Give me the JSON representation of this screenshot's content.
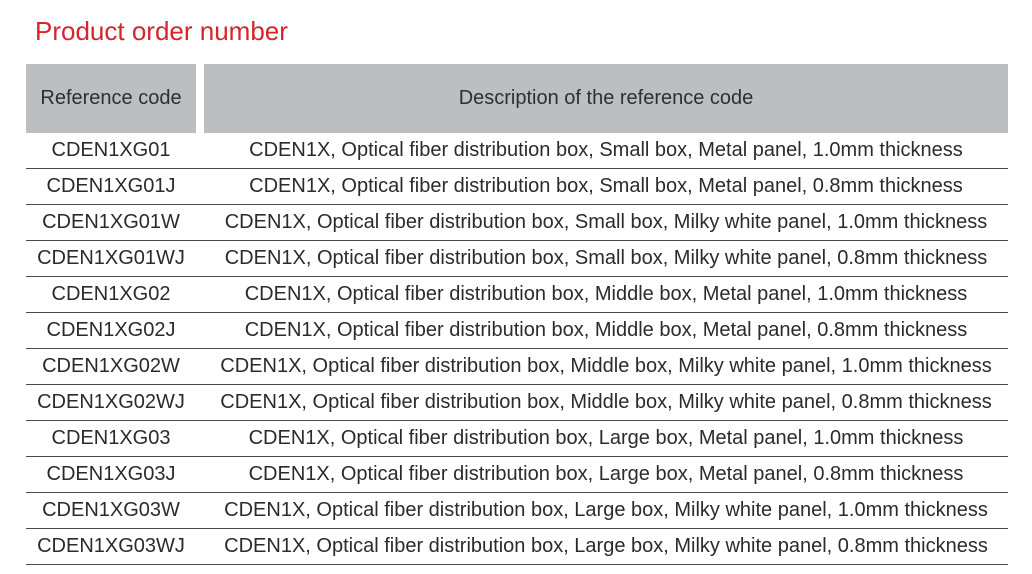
{
  "title": "Product order number",
  "colors": {
    "title_red": "#d2262c",
    "header_bg": "#bcbec0",
    "row_separator": "#4a4a4a",
    "body_text": "#2b2b2b"
  },
  "table": {
    "columns": [
      {
        "label": "Reference code"
      },
      {
        "label": "Description of the reference code"
      }
    ],
    "rows": [
      {
        "code": "CDEN1XG01",
        "description": "CDEN1X, Optical fiber distribution box, Small box, Metal panel, 1.0mm thickness"
      },
      {
        "code": "CDEN1XG01J",
        "description": "CDEN1X, Optical fiber distribution box, Small box, Metal panel, 0.8mm thickness"
      },
      {
        "code": "CDEN1XG01W",
        "description": "CDEN1X, Optical fiber distribution box, Small box, Milky white panel, 1.0mm thickness"
      },
      {
        "code": "CDEN1XG01WJ",
        "description": "CDEN1X, Optical fiber distribution box, Small box, Milky white panel, 0.8mm thickness"
      },
      {
        "code": "CDEN1XG02",
        "description": "CDEN1X, Optical fiber distribution box, Middle box, Metal panel, 1.0mm thickness"
      },
      {
        "code": "CDEN1XG02J",
        "description": "CDEN1X, Optical fiber distribution box, Middle box, Metal panel, 0.8mm thickness"
      },
      {
        "code": "CDEN1XG02W",
        "description": "CDEN1X, Optical fiber distribution box, Middle box, Milky white panel, 1.0mm thickness"
      },
      {
        "code": "CDEN1XG02WJ",
        "description": "CDEN1X, Optical fiber distribution box, Middle box, Milky white panel, 0.8mm thickness"
      },
      {
        "code": "CDEN1XG03",
        "description": "CDEN1X, Optical fiber distribution box, Large box, Metal panel, 1.0mm thickness"
      },
      {
        "code": "CDEN1XG03J",
        "description": "CDEN1X, Optical fiber distribution box, Large box, Metal panel, 0.8mm thickness"
      },
      {
        "code": "CDEN1XG03W",
        "description": "CDEN1X, Optical fiber distribution box, Large box, Milky white panel, 1.0mm thickness"
      },
      {
        "code": "CDEN1XG03WJ",
        "description": "CDEN1X, Optical fiber distribution box, Large box, Milky white panel, 0.8mm thickness"
      }
    ]
  }
}
